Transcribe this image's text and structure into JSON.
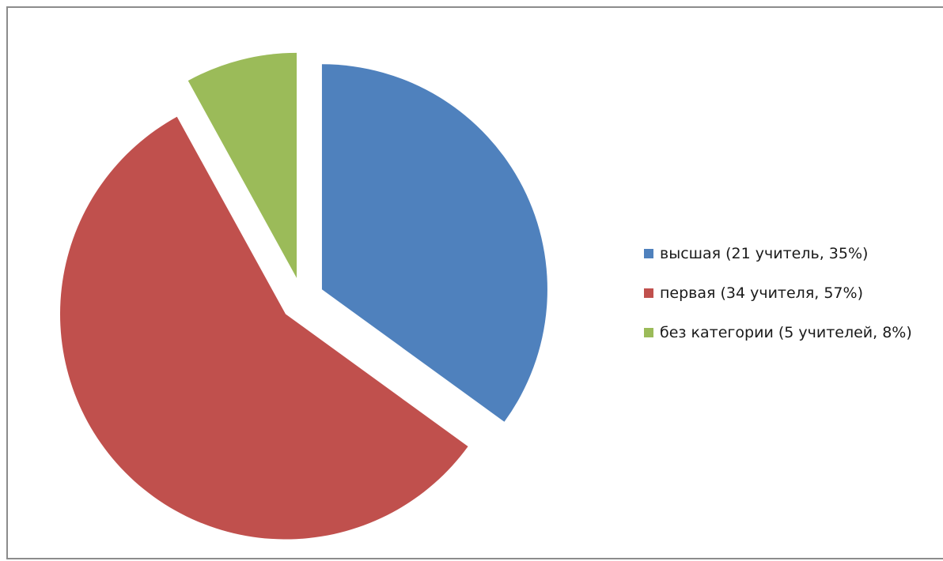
{
  "chart_data": {
    "type": "pie",
    "exploded": true,
    "series": [
      {
        "name": "высшая  (21 учитель, 35%)",
        "value": 35,
        "color": "#4F81BD"
      },
      {
        "name": "первая (34 учителя, 57%)",
        "value": 57,
        "color": "#C0504D"
      },
      {
        "name": "без категории (5 учителей, 8%)",
        "value": 8,
        "color": "#9BBB59"
      }
    ],
    "legend": "right"
  }
}
